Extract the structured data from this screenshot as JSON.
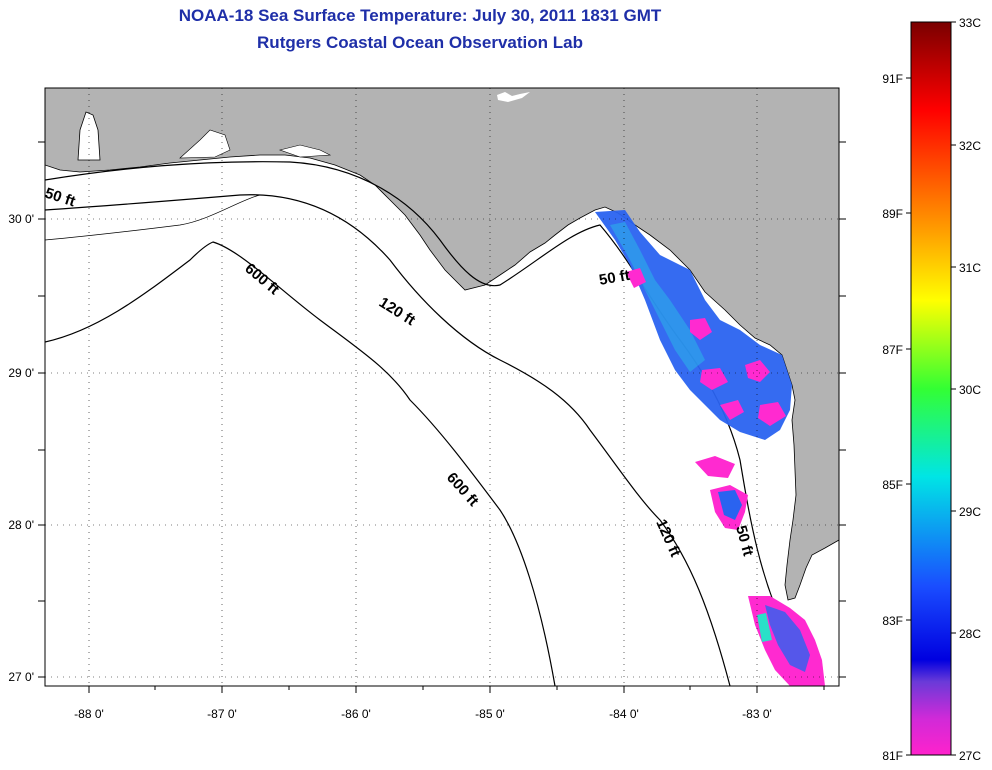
{
  "title": {
    "line1": "NOAA-18 Sea Surface Temperature:  July 30, 2011 1831 GMT",
    "line2": "Rutgers Coastal Ocean Observation Lab"
  },
  "map": {
    "lon_labels": [
      "-88 0'",
      "-87 0'",
      "-86 0'",
      "-85 0'",
      "-84 0'",
      "-83 0'"
    ],
    "lat_labels": [
      "30 0'",
      "29 0'",
      "28 0'",
      "27 0'"
    ],
    "contour_labels": [
      "50 ft",
      "600 ft",
      "120 ft",
      "50 ft",
      "600 ft",
      "120 ft",
      "50 ft"
    ],
    "colors": {
      "land": "#b3b3b3",
      "sea": "#ffffff",
      "grid": "#000000"
    }
  },
  "colorbar": {
    "celsius_labels": [
      "33C",
      "32C",
      "31C",
      "30C",
      "29C",
      "28C",
      "27C"
    ],
    "fahrenheit_labels": [
      "91F",
      "89F",
      "87F",
      "85F",
      "83F",
      "81F"
    ],
    "stops": [
      "#8b0000",
      "#ff0000",
      "#ff8c00",
      "#ffff00",
      "#7cfc00",
      "#00e5e5",
      "#0000ff",
      "#8a2be2",
      "#ff1fd0"
    ]
  }
}
